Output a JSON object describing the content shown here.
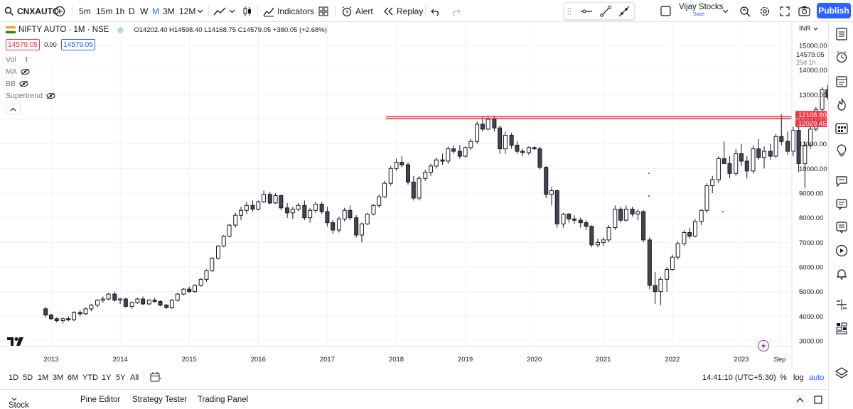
{
  "toolbar": {
    "search_icon": "search-icon",
    "symbol": "CNXAUTC",
    "intervals": [
      "5m",
      "15m",
      "1h",
      "D",
      "W",
      "M",
      "3M",
      "12M"
    ],
    "active_interval": "M",
    "indicators_label": "Indicators",
    "alert_label": "Alert",
    "replay_label": "Replay",
    "layout_name": "Vijay Stocks",
    "layout_save": "Save",
    "publish_label": "Publish",
    "publish_color": "#2962ff"
  },
  "legend": {
    "title": "NIFTY AUTO · 1M · NSE",
    "ohlc": "O14202.40 H14598.40 L14168.75 C14579.05 +380.05 (+2.68%)",
    "bid": "14579.05",
    "spread": "0.00",
    "ask": "14579.05",
    "indicators": [
      "Vol",
      "MA",
      "BB",
      "Supertrend"
    ]
  },
  "price_axis": {
    "currency": "INR",
    "ticks": [
      "15000.00",
      "14000.00",
      "13000.00",
      "12000.00",
      "11000.00",
      "10000.00",
      "9000.00",
      "8000.00",
      "7000.00",
      "6000.00",
      "5000.00",
      "4000.00",
      "3000.00"
    ],
    "last_price": "14579.05",
    "countdown": "25d 1h",
    "line_labels": [
      "12108.80",
      "12029.45"
    ],
    "line_color": "#f23645"
  },
  "time_axis": {
    "ticks": [
      "2013",
      "2014",
      "2015",
      "2016",
      "2017",
      "2018",
      "2019",
      "2020",
      "2021",
      "2022",
      "2023",
      "Sep"
    ]
  },
  "range_bar": {
    "ranges": [
      "1D",
      "5D",
      "1M",
      "3M",
      "6M",
      "YTD",
      "1Y",
      "5Y",
      "All"
    ],
    "clock": "14:41:10 (UTC+5:30)",
    "percent": "%",
    "log": "log",
    "auto": "auto"
  },
  "bottom_panel": {
    "tabs": [
      "Stock Screener",
      "Pine Editor",
      "Strategy Tester",
      "Trading Panel"
    ]
  },
  "chart_data": {
    "type": "candlestick",
    "symbol": "NIFTY AUTO",
    "interval": "1M",
    "candles": [
      [
        2012.92,
        4300,
        4380,
        3950,
        4050
      ],
      [
        2013.0,
        4050,
        4100,
        3850,
        3900
      ],
      [
        2013.08,
        3900,
        3950,
        3750,
        3820
      ],
      [
        2013.17,
        3820,
        3950,
        3700,
        3900
      ],
      [
        2013.25,
        3900,
        4000,
        3800,
        3850
      ],
      [
        2013.33,
        3850,
        4200,
        3800,
        4150
      ],
      [
        2013.42,
        4150,
        4250,
        4000,
        4100
      ],
      [
        2013.5,
        4100,
        4350,
        4050,
        4300
      ],
      [
        2013.58,
        4300,
        4500,
        4200,
        4450
      ],
      [
        2013.67,
        4450,
        4700,
        4350,
        4650
      ],
      [
        2013.75,
        4650,
        4800,
        4550,
        4700
      ],
      [
        2013.83,
        4700,
        4950,
        4650,
        4900
      ],
      [
        2013.92,
        4900,
        5000,
        4600,
        4650
      ],
      [
        2014.0,
        4650,
        4750,
        4500,
        4700
      ],
      [
        2014.08,
        4700,
        4750,
        4350,
        4400
      ],
      [
        2014.17,
        4400,
        4600,
        4300,
        4550
      ],
      [
        2014.25,
        4550,
        4750,
        4500,
        4700
      ],
      [
        2014.33,
        4700,
        4800,
        4450,
        4500
      ],
      [
        2014.42,
        4500,
        4700,
        4450,
        4650
      ],
      [
        2014.5,
        4650,
        4750,
        4550,
        4600
      ],
      [
        2014.58,
        4600,
        4650,
        4400,
        4450
      ],
      [
        2014.67,
        4450,
        4500,
        4300,
        4350
      ],
      [
        2014.75,
        4350,
        4700,
        4300,
        4650
      ],
      [
        2014.83,
        4650,
        4950,
        4600,
        4900
      ],
      [
        2014.92,
        4900,
        5150,
        4850,
        5100
      ],
      [
        2015.0,
        5100,
        5200,
        4950,
        5000
      ],
      [
        2015.08,
        5000,
        5300,
        4950,
        5250
      ],
      [
        2015.17,
        5250,
        5550,
        5200,
        5500
      ],
      [
        2015.25,
        5500,
        5900,
        5400,
        5850
      ],
      [
        2015.33,
        5850,
        6400,
        5800,
        6350
      ],
      [
        2015.42,
        6350,
        6900,
        6300,
        6850
      ],
      [
        2015.5,
        6850,
        7300,
        6800,
        7250
      ],
      [
        2015.58,
        7250,
        7750,
        7200,
        7700
      ],
      [
        2015.67,
        7700,
        8200,
        7600,
        8100
      ],
      [
        2015.75,
        8100,
        8450,
        7900,
        8300
      ],
      [
        2015.83,
        8300,
        8650,
        8150,
        8500
      ],
      [
        2015.92,
        8500,
        8700,
        8250,
        8350
      ],
      [
        2016.0,
        8350,
        8700,
        8300,
        8650
      ],
      [
        2016.08,
        8650,
        9100,
        8600,
        8950
      ],
      [
        2016.17,
        8950,
        9050,
        8550,
        8600
      ],
      [
        2016.25,
        8600,
        9000,
        8550,
        8900
      ],
      [
        2016.33,
        8900,
        8950,
        8300,
        8400
      ],
      [
        2016.42,
        8400,
        8600,
        8000,
        8200
      ],
      [
        2016.5,
        8200,
        8450,
        7950,
        8350
      ],
      [
        2016.58,
        8350,
        8600,
        8250,
        8500
      ],
      [
        2016.67,
        8500,
        8700,
        7900,
        8000
      ],
      [
        2016.75,
        8000,
        8400,
        7800,
        8300
      ],
      [
        2016.83,
        8300,
        8650,
        8200,
        8550
      ],
      [
        2016.92,
        8550,
        8650,
        8150,
        8250
      ],
      [
        2017.0,
        8250,
        8450,
        7650,
        7800
      ],
      [
        2017.08,
        7800,
        7900,
        7350,
        7500
      ],
      [
        2017.17,
        7500,
        8050,
        7400,
        7950
      ],
      [
        2017.25,
        7950,
        8400,
        7850,
        8300
      ],
      [
        2017.33,
        8300,
        8500,
        7900,
        8000
      ],
      [
        2017.42,
        8000,
        8100,
        7200,
        7300
      ],
      [
        2017.5,
        7300,
        7800,
        7000,
        7750
      ],
      [
        2017.58,
        7750,
        8200,
        7700,
        8150
      ],
      [
        2017.67,
        8150,
        8550,
        8100,
        8500
      ],
      [
        2017.75,
        8500,
        8950,
        8400,
        8850
      ],
      [
        2017.83,
        8850,
        9500,
        8800,
        9400
      ],
      [
        2017.92,
        9400,
        10100,
        9300,
        10000
      ],
      [
        2018.0,
        10000,
        10400,
        9900,
        10250
      ],
      [
        2018.08,
        10250,
        10500,
        10050,
        10150
      ],
      [
        2018.17,
        10150,
        10250,
        9350,
        9450
      ],
      [
        2018.25,
        9450,
        9700,
        8700,
        8800
      ],
      [
        2018.33,
        8800,
        9700,
        8700,
        9600
      ],
      [
        2018.42,
        9600,
        9950,
        9500,
        9850
      ],
      [
        2018.5,
        9850,
        10200,
        9700,
        10100
      ],
      [
        2018.58,
        10100,
        10450,
        10000,
        10350
      ],
      [
        2018.67,
        10350,
        10600,
        10150,
        10300
      ],
      [
        2018.75,
        10300,
        10900,
        10200,
        10800
      ],
      [
        2018.83,
        10800,
        10950,
        10600,
        10700
      ],
      [
        2018.92,
        10700,
        10950,
        10400,
        10500
      ],
      [
        2019.0,
        10500,
        10900,
        10450,
        10850
      ],
      [
        2019.08,
        10850,
        11200,
        10750,
        11100
      ],
      [
        2019.17,
        11100,
        11900,
        11000,
        11800
      ],
      [
        2019.25,
        11800,
        12100,
        11500,
        11600
      ],
      [
        2019.33,
        11600,
        12150,
        11550,
        12000
      ],
      [
        2019.42,
        12000,
        12150,
        11500,
        11650
      ],
      [
        2019.5,
        11650,
        11750,
        10600,
        10800
      ],
      [
        2019.58,
        10800,
        11500,
        10600,
        11350
      ],
      [
        2019.67,
        11350,
        11450,
        10800,
        10950
      ],
      [
        2019.75,
        10950,
        11100,
        10600,
        10700
      ],
      [
        2019.83,
        10700,
        10800,
        10500,
        10650
      ],
      [
        2019.92,
        10650,
        10900,
        10550,
        10850
      ],
      [
        2020.0,
        10850,
        10900,
        10750,
        10800
      ],
      [
        2020.08,
        10800,
        10900,
        9950,
        10050
      ],
      [
        2020.17,
        10050,
        10100,
        8800,
        8950
      ],
      [
        2020.25,
        8950,
        9250,
        8500,
        9100
      ],
      [
        2020.33,
        9100,
        9150,
        7600,
        7750
      ],
      [
        2020.42,
        7750,
        8200,
        7600,
        8150
      ],
      [
        2020.5,
        8150,
        8200,
        7800,
        7950
      ],
      [
        2020.58,
        7950,
        8100,
        7750,
        7900
      ],
      [
        2020.67,
        7900,
        8000,
        7600,
        7800
      ],
      [
        2020.75,
        7800,
        7900,
        7500,
        7650
      ],
      [
        2020.83,
        7650,
        7700,
        6800,
        6900
      ],
      [
        2020.92,
        6900,
        7150,
        6800,
        7000
      ],
      [
        2021.0,
        7000,
        7200,
        6850,
        7100
      ],
      [
        2021.08,
        7100,
        7700,
        7000,
        7600
      ],
      [
        2021.17,
        7600,
        8500,
        7500,
        8350
      ],
      [
        2021.25,
        8350,
        8450,
        7800,
        7900
      ],
      [
        2021.33,
        7900,
        8500,
        7850,
        8350
      ],
      [
        2021.42,
        8350,
        8450,
        8050,
        8150
      ],
      [
        2021.5,
        8150,
        8350,
        7900,
        8250
      ],
      [
        2021.58,
        8250,
        8300,
        7000,
        7100
      ],
      [
        2021.67,
        7100,
        7200,
        5100,
        5250
      ],
      [
        2021.75,
        5250,
        5800,
        4500,
        5000
      ],
      [
        2021.83,
        5000,
        5600,
        4450,
        5500
      ],
      [
        2021.92,
        5500,
        6000,
        5000,
        5900
      ],
      [
        2022.0,
        5900,
        6500,
        5850,
        6400
      ],
      [
        2022.08,
        6400,
        7050,
        6300,
        6950
      ],
      [
        2022.17,
        6950,
        7500,
        6850,
        7400
      ],
      [
        2022.25,
        7400,
        7600,
        7150,
        7250
      ],
      [
        2022.33,
        7250,
        7950,
        7200,
        7850
      ],
      [
        2022.42,
        7850,
        8350,
        7700,
        8300
      ],
      [
        2022.5,
        8300,
        9400,
        8200,
        9300
      ],
      [
        2022.58,
        9300,
        9700,
        9000,
        9550
      ],
      [
        2022.67,
        9550,
        10500,
        9400,
        10400
      ],
      [
        2022.75,
        10400,
        11100,
        10200,
        10200
      ],
      [
        2022.83,
        10200,
        10500,
        9600,
        9800
      ],
      [
        2022.92,
        9800,
        10800,
        9700,
        10600
      ],
      [
        2023.0,
        10600,
        11000,
        10100,
        10300
      ],
      [
        2023.08,
        10300,
        10500,
        9600,
        9900
      ],
      [
        2023.17,
        9900,
        10950,
        9800,
        10800
      ],
      [
        2023.25,
        10800,
        11200,
        10350,
        10450
      ],
      [
        2023.33,
        10450,
        10900,
        10000,
        10700
      ],
      [
        2023.42,
        10700,
        11000,
        10350,
        10500
      ],
      [
        2023.5,
        10500,
        11400,
        10450,
        11300
      ],
      [
        2023.58,
        11300,
        12200,
        10950,
        11100
      ],
      [
        2023.67,
        11100,
        11500,
        10550,
        10700
      ],
      [
        2023.75,
        10700,
        11700,
        10500,
        11550
      ],
      [
        2023.83,
        11550,
        11700,
        9850,
        10200
      ],
      [
        2023.92,
        10200,
        11100,
        9200,
        10950
      ],
      [
        2024.0,
        10950,
        11800,
        10800,
        11600
      ],
      [
        2024.08,
        11600,
        12500,
        11500,
        12400
      ],
      [
        2024.17,
        12400,
        13300,
        12300,
        13200
      ],
      [
        2024.25,
        13200,
        13400,
        12800,
        12900
      ],
      [
        2024.33,
        12900,
        13400,
        12600,
        13300
      ],
      [
        2024.42,
        13300,
        13500,
        12200,
        12400
      ],
      [
        2024.5,
        12400,
        13400,
        12300,
        13300
      ],
      [
        2024.58,
        13300,
        13500,
        12800,
        13200
      ],
      [
        2024.67,
        13200,
        13350,
        12750,
        12950
      ],
      [
        2024.75,
        12950,
        13300,
        12850,
        13150
      ],
      [
        2024.83,
        13150,
        13300,
        12400,
        12500
      ],
      [
        2024.92,
        12500,
        13250,
        12000,
        12200
      ],
      [
        2025.0,
        12200,
        13100,
        12150,
        13050
      ],
      [
        2025.08,
        13050,
        14000,
        13000,
        13900
      ],
      [
        2025.17,
        13900,
        14350,
        13800,
        14200
      ],
      [
        2025.25,
        14202.4,
        14598.4,
        14168.75,
        14579.05
      ]
    ],
    "horizontal_levels": [
      12108.8,
      12029.45
    ],
    "ylim": [
      2700,
      15700
    ],
    "y_scale": "linear",
    "grid": true
  }
}
